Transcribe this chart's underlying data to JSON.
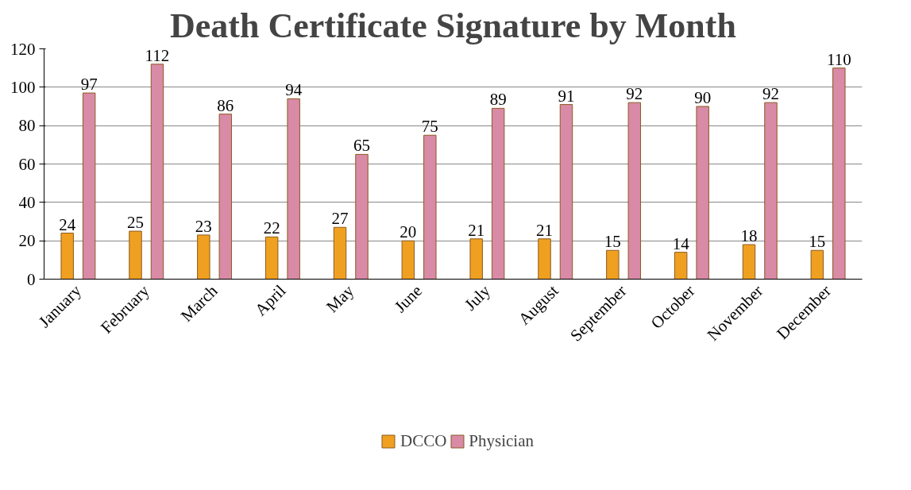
{
  "chart_data": {
    "type": "bar",
    "title": "Death Certificate Signature by Month",
    "categories": [
      "January",
      "February",
      "March",
      "April",
      "May",
      "June",
      "July",
      "August",
      "September",
      "October",
      "November",
      "December"
    ],
    "series": [
      {
        "name": "DCCO",
        "color": "#f0a020",
        "values": [
          24,
          25,
          23,
          22,
          27,
          20,
          21,
          21,
          15,
          14,
          18,
          15
        ]
      },
      {
        "name": "Physician",
        "color": "#d98aa6",
        "values": [
          97,
          112,
          86,
          94,
          65,
          75,
          89,
          91,
          92,
          90,
          92,
          110
        ]
      }
    ],
    "ylim": [
      0,
      120
    ],
    "yticks": [
      0,
      20,
      40,
      60,
      80,
      100,
      120
    ],
    "grid": "y",
    "legend": "bottom",
    "data_labels": true
  }
}
